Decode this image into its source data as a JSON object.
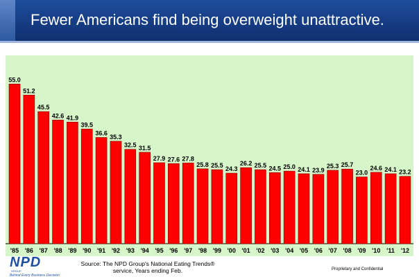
{
  "title": "Fewer Americans find being overweight unattractive.",
  "source": "Source: The NPD Group's National Eating Trends® service, Years ending Feb.",
  "confidential": "Proprietary and Confidential",
  "logo": {
    "mark": "NPD",
    "sub": "GROUP",
    "tagline": "Behind Every Business Decision"
  },
  "colors": {
    "bar": "#ff0000",
    "plot_bg": "#d6f5c8",
    "title_bg": "#1b4a98"
  },
  "chart_data": {
    "type": "bar",
    "title": "",
    "xlabel": "",
    "ylabel": "",
    "categories": [
      "'85",
      "'86",
      "'87",
      "'88",
      "'89",
      "'90",
      "'91",
      "'92",
      "'93",
      "'94",
      "'95",
      "'96",
      "'97",
      "'98",
      "'99",
      "'00",
      "'01",
      "'02",
      "'03",
      "'04",
      "'05",
      "'06",
      "'07",
      "'08",
      "'09",
      "'10",
      "'11",
      "'12"
    ],
    "values": [
      55.0,
      51.2,
      45.5,
      42.6,
      41.9,
      39.5,
      36.6,
      35.3,
      32.5,
      31.5,
      27.9,
      27.6,
      27.8,
      25.8,
      25.5,
      24.3,
      26.2,
      25.5,
      24.5,
      25.0,
      24.1,
      23.9,
      25.3,
      25.7,
      23.0,
      24.6,
      24.1,
      23.2
    ],
    "value_labels": [
      "55.0",
      "51.2",
      "45.5",
      "42.6",
      "41.9",
      "39.5",
      "36.6",
      "35.3",
      "32.5",
      "31.5",
      "27.9",
      "27.6",
      "27.8",
      "25.8",
      "25.5",
      "24.3",
      "26.2",
      "25.5",
      "24.5",
      "25.0",
      "24.1",
      "23.9",
      "25.3",
      "25.7",
      "23.0",
      "24.6",
      "24.1",
      "23.2"
    ],
    "ylim": [
      0,
      62
    ],
    "grid": false,
    "legend": "none"
  }
}
